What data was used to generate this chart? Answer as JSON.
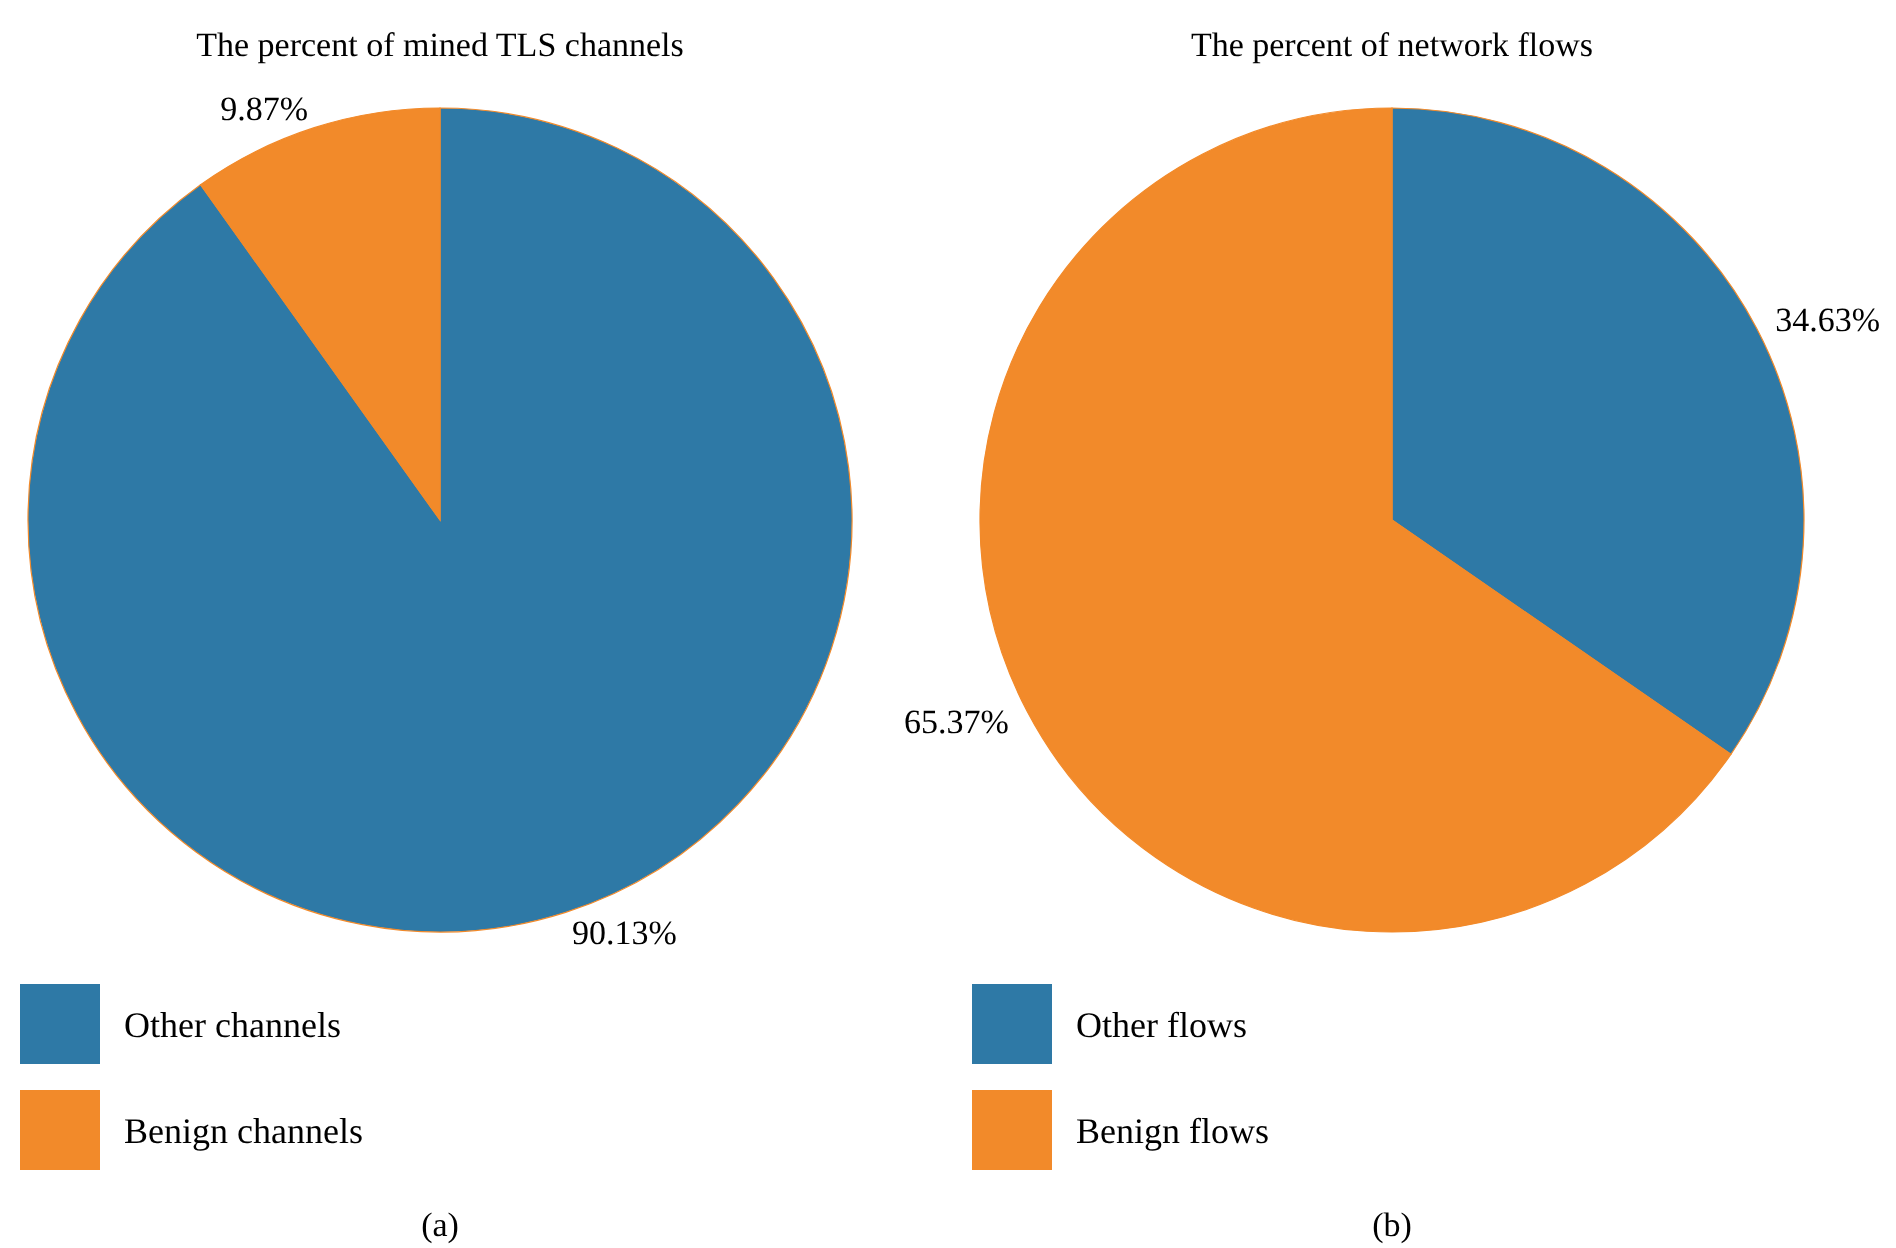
{
  "chart_data": [
    {
      "type": "pie",
      "title": "The percent of mined TLS channels",
      "categories": [
        "Other channels",
        "Benign channels"
      ],
      "values": [
        90.13,
        9.87
      ],
      "colors": [
        "#2e79a6",
        "#f28a2a"
      ],
      "value_labels": [
        "90.13%",
        "9.87%"
      ],
      "legend": "bottom",
      "annotations": [
        "(a)"
      ]
    },
    {
      "type": "pie",
      "title": "The percent of network flows",
      "categories": [
        "Other flows",
        "Benign flows"
      ],
      "values": [
        34.63,
        65.37
      ],
      "colors": [
        "#2e79a6",
        "#f28a2a"
      ],
      "value_labels": [
        "34.63%",
        "65.37%"
      ],
      "legend": "bottom",
      "annotations": [
        "(b)"
      ]
    }
  ]
}
